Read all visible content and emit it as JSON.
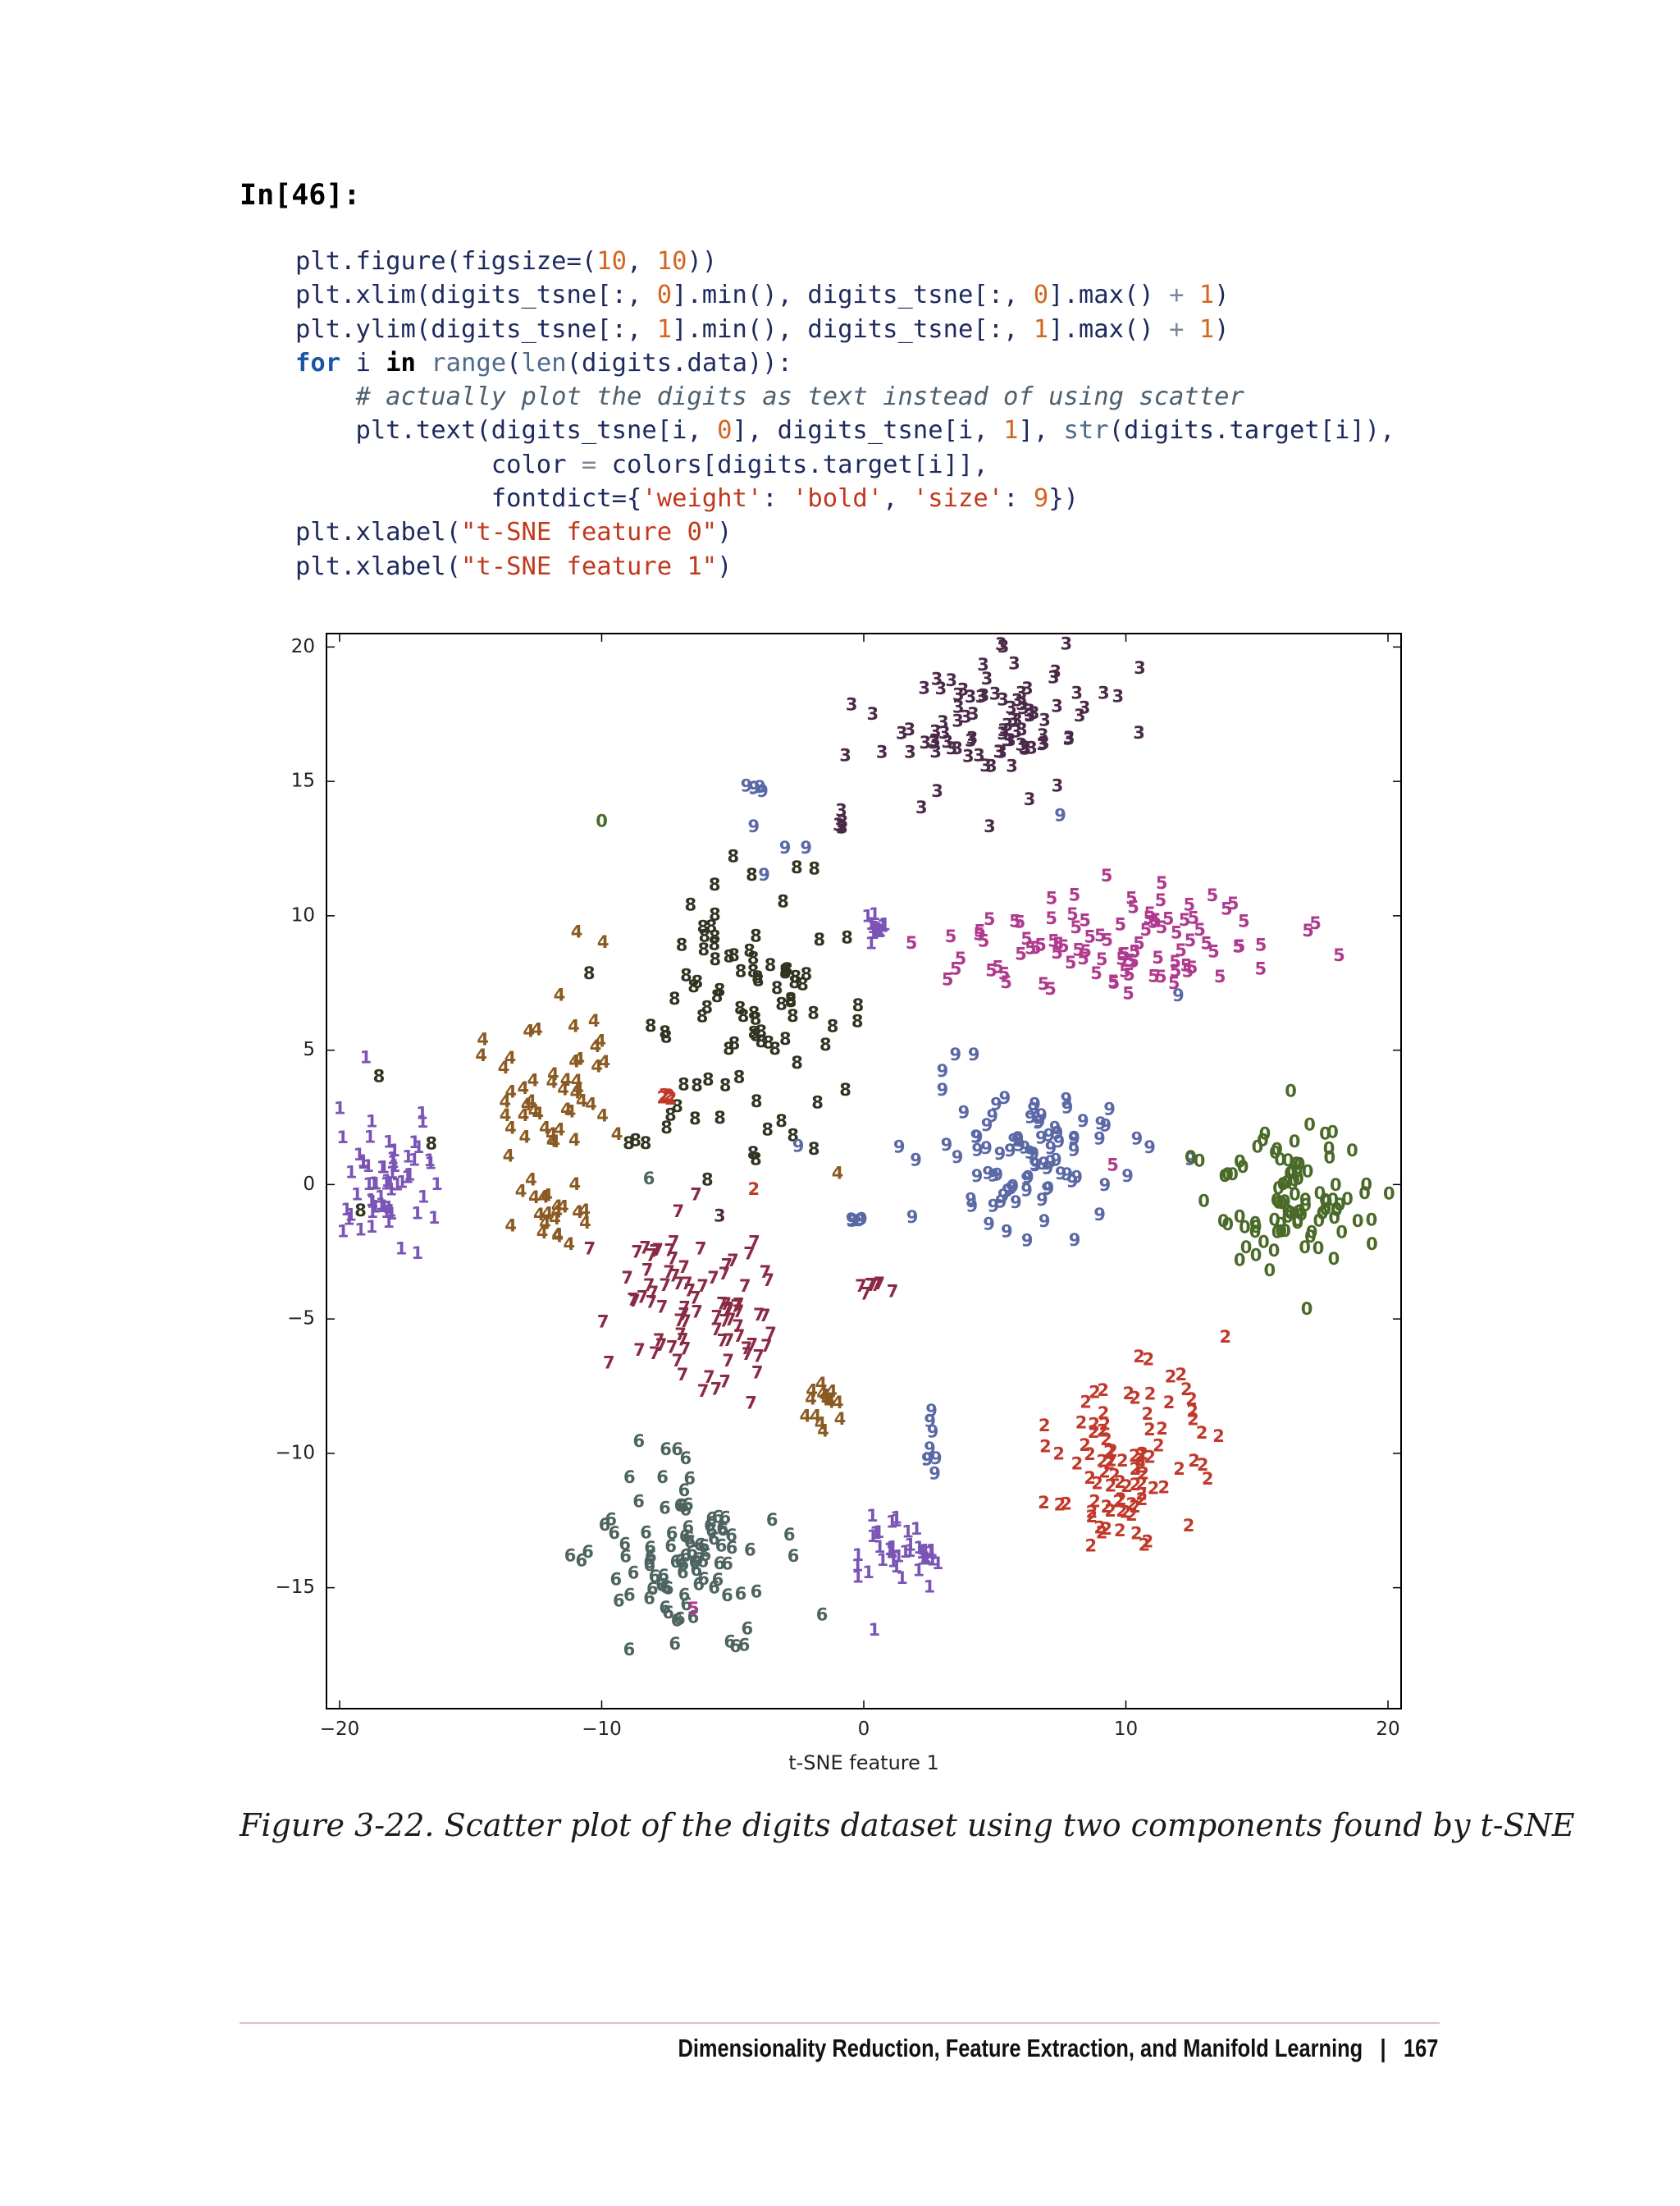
{
  "prompt": "In[46]:",
  "code_lines": [
    [
      {
        "t": "plt.figure(figsize=(",
        "c": ""
      },
      {
        "t": "10",
        "c": "num"
      },
      {
        "t": ", ",
        "c": ""
      },
      {
        "t": "10",
        "c": "num"
      },
      {
        "t": "))",
        "c": ""
      }
    ],
    [
      {
        "t": "plt.xlim(digits_tsne[:, ",
        "c": ""
      },
      {
        "t": "0",
        "c": "num"
      },
      {
        "t": "].min(), digits_tsne[:, ",
        "c": ""
      },
      {
        "t": "0",
        "c": "num"
      },
      {
        "t": "].max() ",
        "c": ""
      },
      {
        "t": "+",
        "c": "op"
      },
      {
        "t": " ",
        "c": ""
      },
      {
        "t": "1",
        "c": "num"
      },
      {
        "t": ")",
        "c": ""
      }
    ],
    [
      {
        "t": "plt.ylim(digits_tsne[:, ",
        "c": ""
      },
      {
        "t": "1",
        "c": "num"
      },
      {
        "t": "].min(), digits_tsne[:, ",
        "c": ""
      },
      {
        "t": "1",
        "c": "num"
      },
      {
        "t": "].max() ",
        "c": ""
      },
      {
        "t": "+",
        "c": "op"
      },
      {
        "t": " ",
        "c": ""
      },
      {
        "t": "1",
        "c": "num"
      },
      {
        "t": ")",
        "c": ""
      }
    ],
    [
      {
        "t": "for",
        "c": "kw"
      },
      {
        "t": " i ",
        "c": ""
      },
      {
        "t": "in",
        "c": "kw2"
      },
      {
        "t": " ",
        "c": ""
      },
      {
        "t": "range",
        "c": "bi"
      },
      {
        "t": "(",
        "c": ""
      },
      {
        "t": "len",
        "c": "bi"
      },
      {
        "t": "(digits.data)):",
        "c": ""
      }
    ],
    [
      {
        "t": "    ",
        "c": ""
      },
      {
        "t": "# actually plot the digits as text instead of using scatter",
        "c": "cm"
      }
    ],
    [
      {
        "t": "    plt.text(digits_tsne[i, ",
        "c": ""
      },
      {
        "t": "0",
        "c": "num"
      },
      {
        "t": "], digits_tsne[i, ",
        "c": ""
      },
      {
        "t": "1",
        "c": "num"
      },
      {
        "t": "], ",
        "c": ""
      },
      {
        "t": "str",
        "c": "bi"
      },
      {
        "t": "(digits.target[i]),",
        "c": ""
      }
    ],
    [
      {
        "t": "             color ",
        "c": ""
      },
      {
        "t": "=",
        "c": "op"
      },
      {
        "t": " colors[digits.target[i]],",
        "c": ""
      }
    ],
    [
      {
        "t": "             fontdict={",
        "c": ""
      },
      {
        "t": "'weight'",
        "c": "str"
      },
      {
        "t": ": ",
        "c": ""
      },
      {
        "t": "'bold'",
        "c": "str"
      },
      {
        "t": ", ",
        "c": ""
      },
      {
        "t": "'size'",
        "c": "str"
      },
      {
        "t": ": ",
        "c": ""
      },
      {
        "t": "9",
        "c": "num"
      },
      {
        "t": "})",
        "c": ""
      }
    ],
    [
      {
        "t": "plt.xlabel(",
        "c": ""
      },
      {
        "t": "\"t-SNE feature 0\"",
        "c": "str"
      },
      {
        "t": ")",
        "c": ""
      }
    ],
    [
      {
        "t": "plt.xlabel(",
        "c": ""
      },
      {
        "t": "\"t-SNE feature 1\"",
        "c": "str"
      },
      {
        "t": ")",
        "c": ""
      }
    ]
  ],
  "chart_data": {
    "type": "scatter",
    "marker": "digit text labels",
    "xlim": [
      -20.5,
      20.5
    ],
    "ylim": [
      -19.5,
      20.5
    ],
    "xticks": [
      -20,
      -10,
      0,
      10,
      20
    ],
    "xtick_labels": [
      "−20",
      "−10",
      "0",
      "10",
      "20"
    ],
    "yticks": [
      20,
      15,
      10,
      5,
      0,
      -5,
      -10,
      -15
    ],
    "ytick_labels": [
      "20",
      "15",
      "10",
      "5",
      "0",
      "−5",
      "−10",
      "−15"
    ],
    "xlabel": "t-SNE feature 1",
    "ylabel": "",
    "grid": false,
    "colors": {
      "0": "#4a6a28",
      "1": "#7a55b5",
      "2": "#c0392b",
      "3": "#4a2a48",
      "4": "#8b5a22",
      "5": "#b03a8e",
      "6": "#4e6460",
      "7": "#8a2a45",
      "8": "#333322",
      "9": "#5a68a5"
    },
    "clusters": [
      {
        "digit": "3",
        "cx": 5.0,
        "cy": 17.5,
        "rx": 4.5,
        "ry": 2.5,
        "n": 90
      },
      {
        "digit": "5",
        "cx": 10.0,
        "cy": 9.0,
        "rx": 7.5,
        "ry": 2.0,
        "n": 95
      },
      {
        "digit": "8",
        "cx": -4.5,
        "cy": 6.5,
        "rx": 3.5,
        "ry": 5.0,
        "n": 90
      },
      {
        "digit": "4",
        "cx": -12.0,
        "cy": 4.0,
        "rx": 2.5,
        "ry": 3.2,
        "n": 50
      },
      {
        "digit": "4",
        "cx": -12.0,
        "cy": -1.0,
        "rx": 1.5,
        "ry": 1.5,
        "n": 20
      },
      {
        "digit": "1",
        "cx": -18.0,
        "cy": 0.0,
        "rx": 2.0,
        "ry": 2.3,
        "n": 60
      },
      {
        "digit": "9",
        "cx": 7.0,
        "cy": 1.0,
        "rx": 4.0,
        "ry": 3.0,
        "n": 85
      },
      {
        "digit": "0",
        "cx": 16.5,
        "cy": -0.5,
        "rx": 3.2,
        "ry": 3.0,
        "n": 95
      },
      {
        "digit": "7",
        "cx": -6.5,
        "cy": -4.5,
        "rx": 3.5,
        "ry": 3.0,
        "n": 85
      },
      {
        "digit": "2",
        "cx": 10.0,
        "cy": -10.5,
        "rx": 3.5,
        "ry": 3.5,
        "n": 90
      },
      {
        "digit": "6",
        "cx": -7.0,
        "cy": -14.0,
        "rx": 3.2,
        "ry": 3.8,
        "n": 95
      },
      {
        "digit": "1",
        "cx": 1.0,
        "cy": -13.5,
        "rx": 1.4,
        "ry": 1.2,
        "n": 30
      },
      {
        "digit": "1",
        "cx": 2.5,
        "cy": -13.8,
        "rx": 0.5,
        "ry": 0.6,
        "n": 8
      },
      {
        "digit": "1",
        "cx": 0.5,
        "cy": 9.5,
        "rx": 0.4,
        "ry": 1.0,
        "n": 12
      },
      {
        "digit": "4",
        "cx": -1.5,
        "cy": -8.0,
        "rx": 0.8,
        "ry": 1.0,
        "n": 15
      },
      {
        "digit": "9",
        "cx": 2.5,
        "cy": -10.0,
        "rx": 0.3,
        "ry": 1.2,
        "n": 8
      },
      {
        "digit": "9",
        "cx": -0.2,
        "cy": -1.5,
        "rx": 0.3,
        "ry": 0.3,
        "n": 5
      },
      {
        "digit": "7",
        "cx": 0.5,
        "cy": -3.8,
        "rx": 0.6,
        "ry": 0.3,
        "n": 6
      },
      {
        "digit": "2",
        "cx": -7.5,
        "cy": 3.2,
        "rx": 0.3,
        "ry": 0.2,
        "n": 5
      },
      {
        "digit": "9",
        "cx": -4.2,
        "cy": 14.7,
        "rx": 0.4,
        "ry": 0.2,
        "n": 5
      },
      {
        "digit": "3",
        "cx": -0.8,
        "cy": 13.5,
        "rx": 0.4,
        "ry": 0.4,
        "n": 5
      },
      {
        "digit": "8",
        "cx": -8.7,
        "cy": 1.5,
        "rx": 0.3,
        "ry": 0.2,
        "n": 3
      }
    ],
    "outliers": [
      {
        "digit": "0",
        "x": -10.0,
        "y": 13.5
      },
      {
        "digit": "9",
        "x": -4.2,
        "y": 13.3
      },
      {
        "digit": "9",
        "x": -3.0,
        "y": 12.5
      },
      {
        "digit": "9",
        "x": -2.2,
        "y": 12.5
      },
      {
        "digit": "9",
        "x": -3.8,
        "y": 11.5
      },
      {
        "digit": "3",
        "x": 2.2,
        "y": 14.0
      },
      {
        "digit": "9",
        "x": 7.5,
        "y": 13.7
      },
      {
        "digit": "3",
        "x": 4.8,
        "y": 13.3
      },
      {
        "digit": "5",
        "x": 3.2,
        "y": 7.6
      },
      {
        "digit": "9",
        "x": 12.0,
        "y": 7.0
      },
      {
        "digit": "9",
        "x": 3.5,
        "y": 4.8
      },
      {
        "digit": "9",
        "x": 4.2,
        "y": 4.8
      },
      {
        "digit": "9",
        "x": 3.0,
        "y": 4.2
      },
      {
        "digit": "9",
        "x": 3.0,
        "y": 3.5
      },
      {
        "digit": "1",
        "x": -19.0,
        "y": 4.7
      },
      {
        "digit": "8",
        "x": -18.5,
        "y": 4.0
      },
      {
        "digit": "1",
        "x": -20.0,
        "y": 2.8
      },
      {
        "digit": "8",
        "x": -16.5,
        "y": 1.5
      },
      {
        "digit": "8",
        "x": -19.2,
        "y": -1.0
      },
      {
        "digit": "2",
        "x": -4.2,
        "y": -0.2
      },
      {
        "digit": "6",
        "x": -8.2,
        "y": 0.2
      },
      {
        "digit": "7",
        "x": -6.4,
        "y": -0.4
      },
      {
        "digit": "3",
        "x": -5.5,
        "y": -1.2
      },
      {
        "digit": "8",
        "x": -2.7,
        "y": 1.8
      },
      {
        "digit": "9",
        "x": -2.5,
        "y": 1.4
      },
      {
        "digit": "4",
        "x": -1.0,
        "y": 0.4
      },
      {
        "digit": "5",
        "x": 9.5,
        "y": 0.7
      },
      {
        "digit": "7",
        "x": 1.1,
        "y": -4.0
      },
      {
        "digit": "5",
        "x": -6.5,
        "y": -15.8
      },
      {
        "digit": "1",
        "x": 0.4,
        "y": -16.6
      },
      {
        "digit": "1",
        "x": 2.5,
        "y": -15.0
      },
      {
        "digit": "6",
        "x": -6.2,
        "y": -19.4
      }
    ]
  },
  "caption": "Figure 3-22. Scatter plot of the digits dataset using two components found by t-SNE",
  "footer": {
    "section": "Dimensionality Reduction, Feature Extraction, and Manifold Learning",
    "separator": "|",
    "page": "167"
  }
}
